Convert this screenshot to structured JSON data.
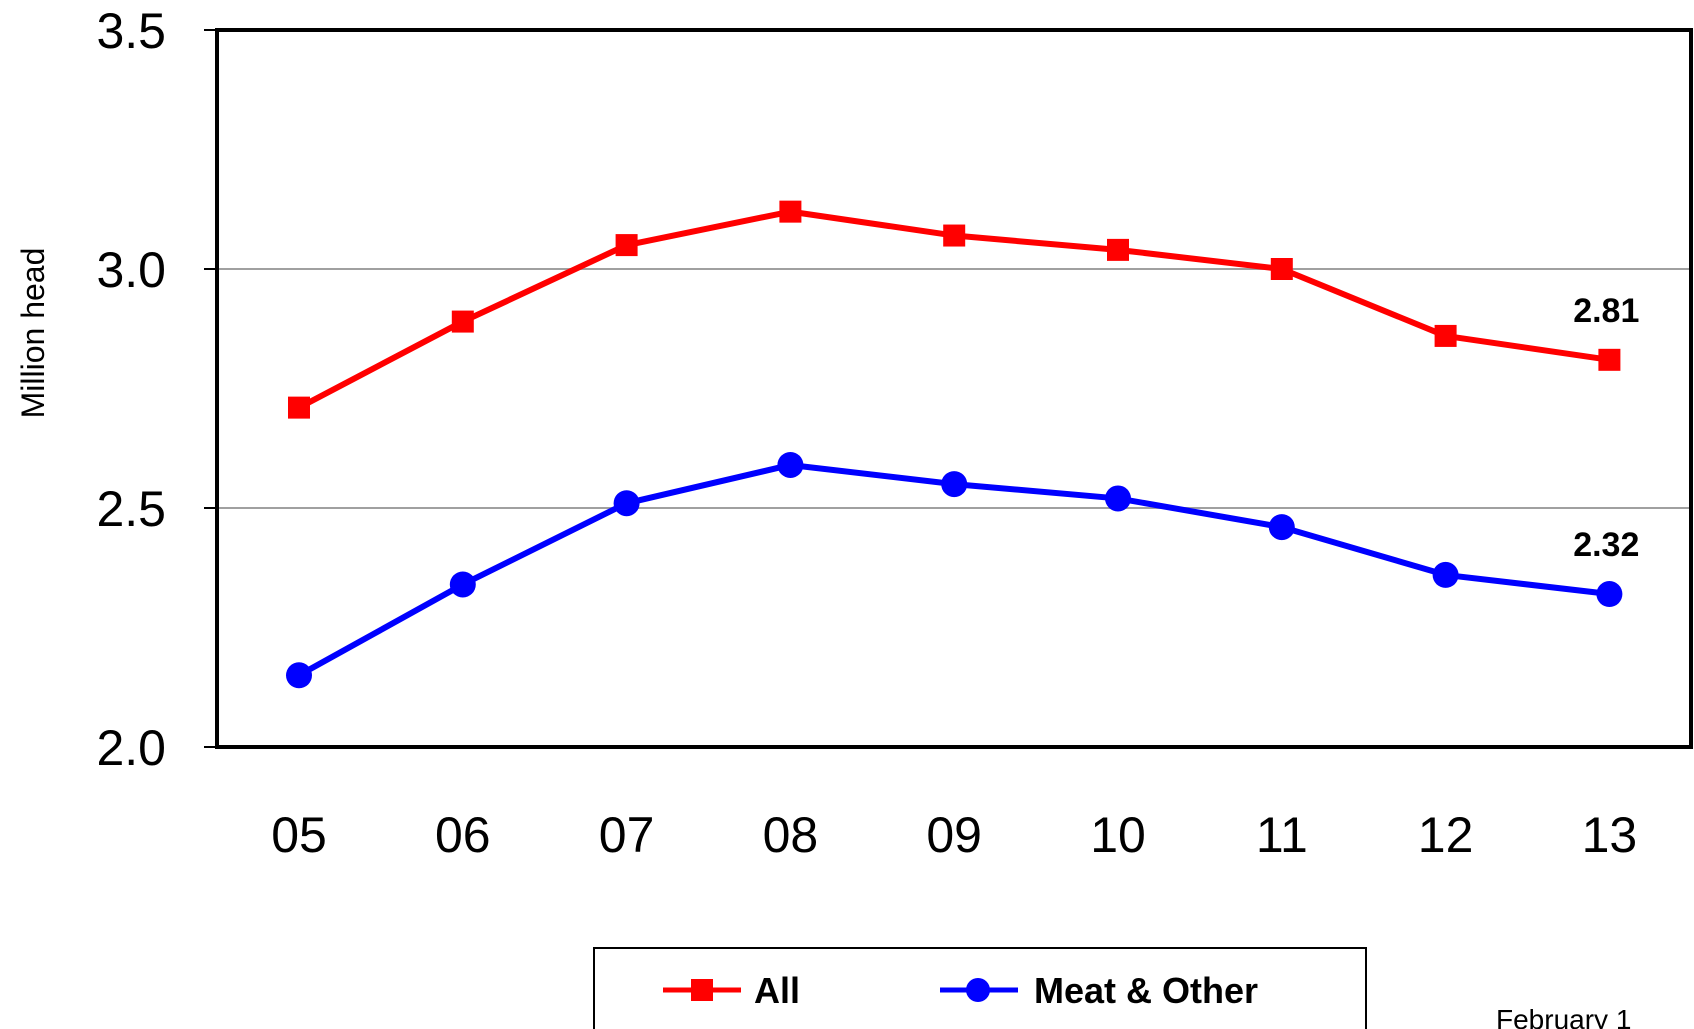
{
  "chart_data": {
    "type": "line",
    "title": "",
    "xlabel": "",
    "ylabel": "Million head",
    "categories": [
      "05",
      "06",
      "07",
      "08",
      "09",
      "10",
      "11",
      "12",
      "13"
    ],
    "yticks": [
      "2.0",
      "2.5",
      "3.0",
      "3.5"
    ],
    "ytick_values": [
      2.0,
      2.5,
      3.0,
      3.5
    ],
    "ylim": [
      2.0,
      3.5
    ],
    "grid": "horizontal at 2.5 and 3.0",
    "legend_position": "bottom-center",
    "series": [
      {
        "name": "All",
        "color": "#ff0000",
        "marker": "square",
        "values": [
          2.71,
          2.89,
          3.05,
          3.12,
          3.07,
          3.04,
          3.0,
          2.86,
          2.81
        ],
        "end_label": "2.81"
      },
      {
        "name": "Meat & Other",
        "color": "#0000ff",
        "marker": "circle",
        "values": [
          2.15,
          2.34,
          2.51,
          2.59,
          2.55,
          2.52,
          2.46,
          2.36,
          2.32
        ],
        "end_label": "2.32"
      }
    ],
    "footer_note": "February 1"
  }
}
